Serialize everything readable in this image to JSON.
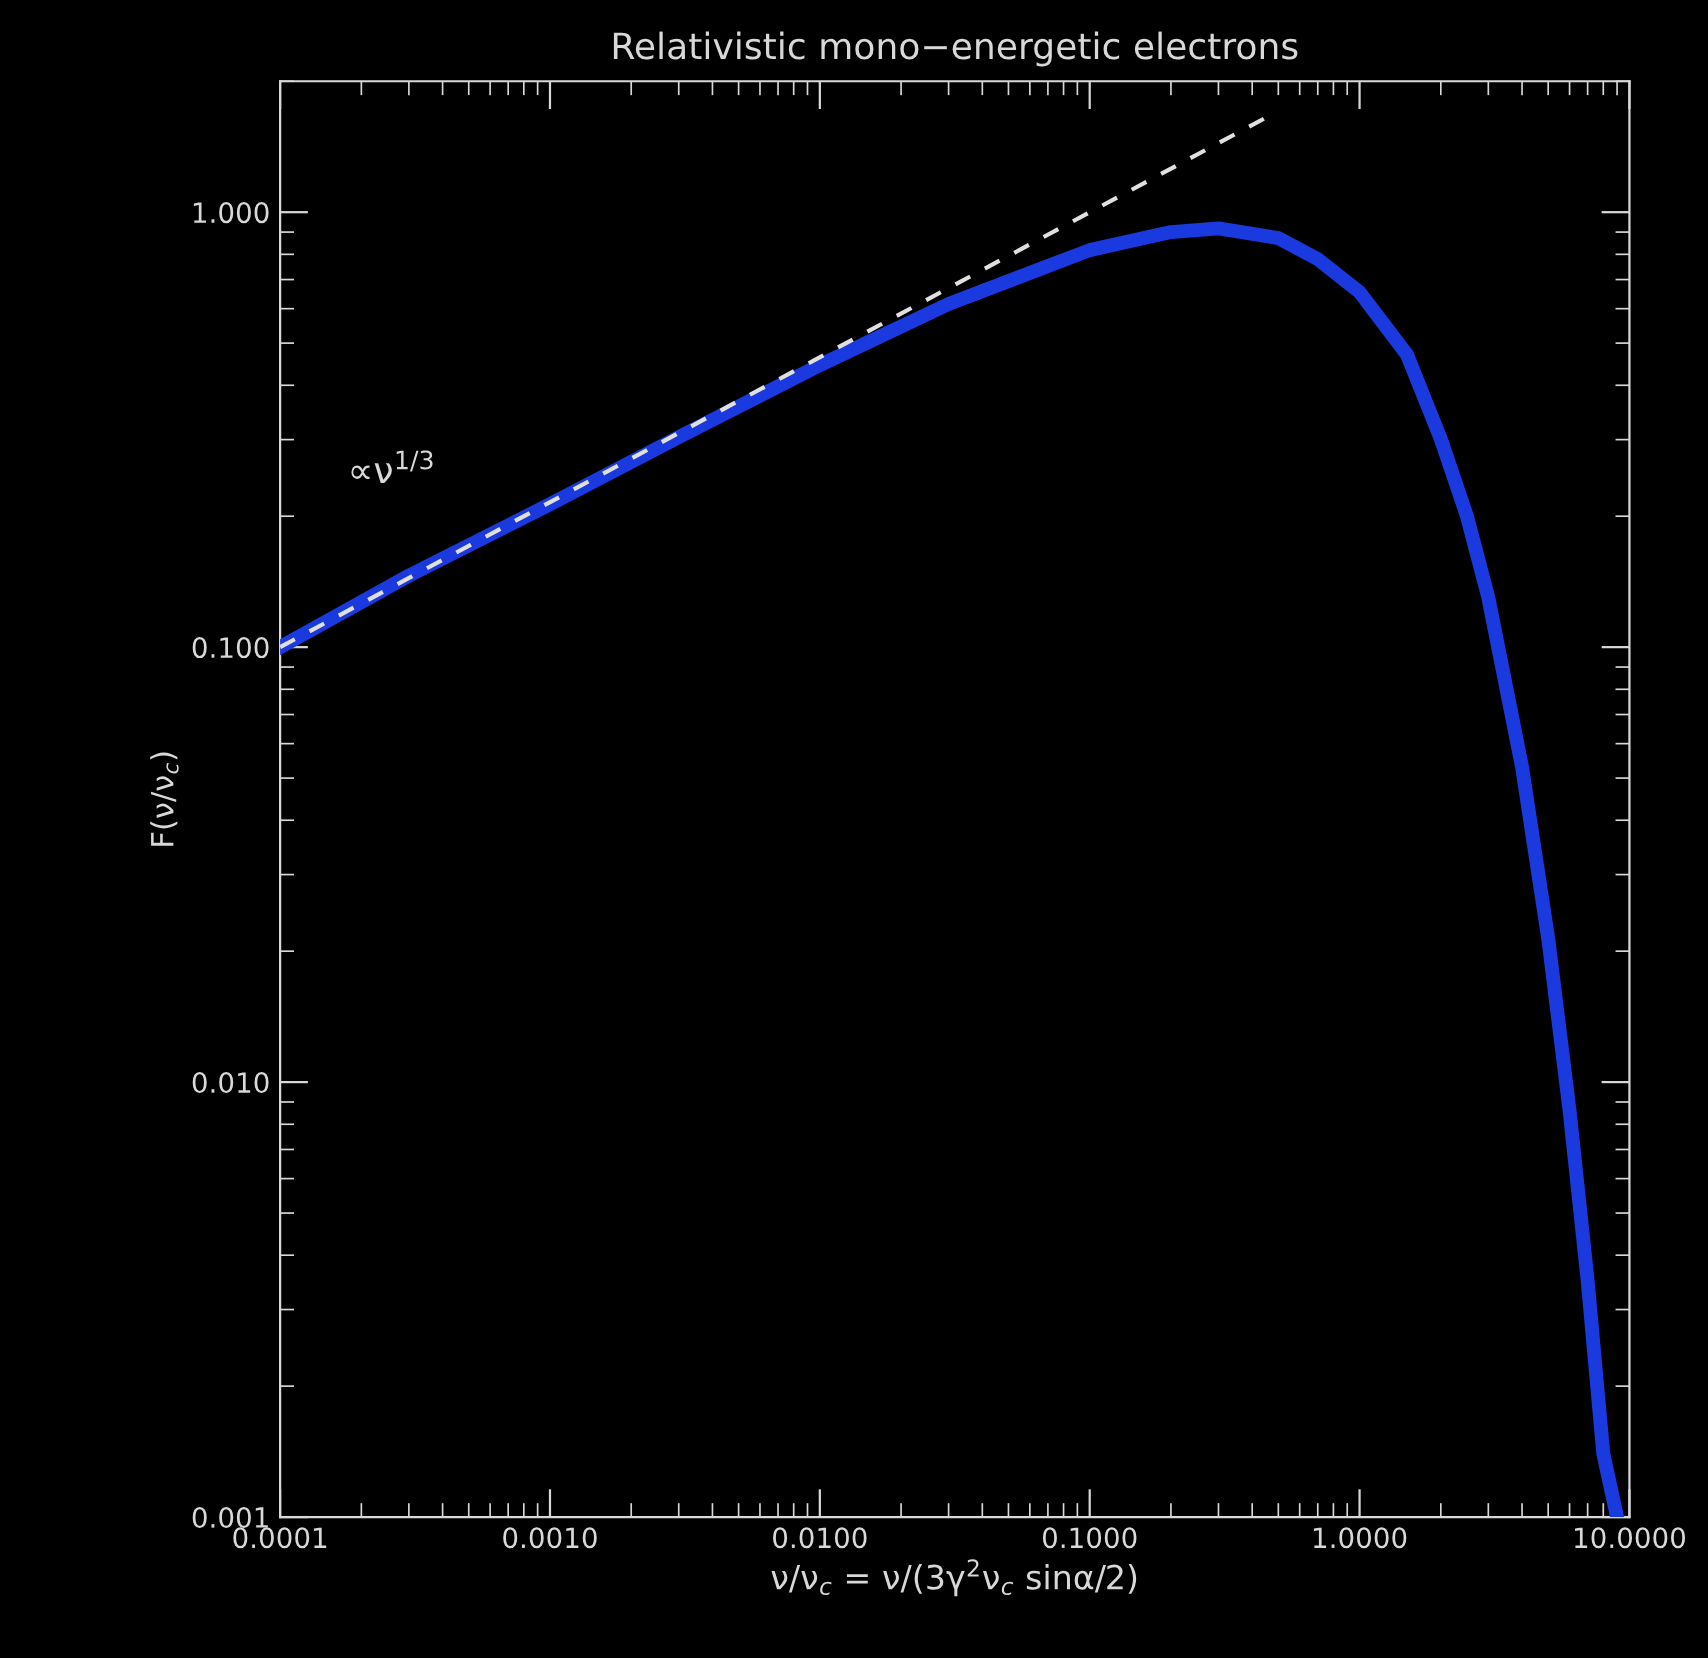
{
  "chart_data": {
    "type": "line",
    "title": "Relativistic mono−energetic electrons",
    "xlabel": "ν/ν$_{c}$ = ν/(3γ$^{2}$ν$_{c}$ sinα/2)",
    "ylabel": "F(ν/ν$_{c}$)",
    "log": "xy",
    "xlim": [
      0.0001,
      10
    ],
    "ylim": [
      0.001,
      2.0
    ],
    "xticks": [
      {
        "value": 0.0001,
        "label": "0.0001"
      },
      {
        "value": 0.001,
        "label": "0.0010"
      },
      {
        "value": 0.01,
        "label": "0.0100"
      },
      {
        "value": 0.1,
        "label": "0.1000"
      },
      {
        "value": 1,
        "label": "1.0000"
      },
      {
        "value": 10,
        "label": "10.0000"
      }
    ],
    "yticks": [
      {
        "value": 0.001,
        "label": "0.001"
      },
      {
        "value": 0.01,
        "label": "0.010"
      },
      {
        "value": 0.1,
        "label": "0.100"
      },
      {
        "value": 1,
        "label": "1.000"
      }
    ],
    "grid": false,
    "legend": false,
    "series": [
      {
        "color": "#1a3ae0",
        "x": [
          0.0001,
          0.0003,
          0.001,
          0.003,
          0.01,
          0.03,
          0.1,
          0.2,
          0.3,
          0.5,
          0.7,
          1.0,
          1.5,
          2.0,
          2.5,
          3.0,
          4.0,
          5.0,
          6.0,
          7.0,
          8.0,
          9.0
        ],
        "values": [
          0.1,
          0.146,
          0.213,
          0.304,
          0.445,
          0.615,
          0.818,
          0.9,
          0.918,
          0.872,
          0.78,
          0.655,
          0.47,
          0.301,
          0.2,
          0.13,
          0.053,
          0.0214,
          0.0086,
          0.0035,
          0.0014,
          0.001
        ]
      },
      {
        "color": "#e0e0e0",
        "line_style": "dashed",
        "x": [
          0.0001,
          0.45
        ],
        "values": [
          0.1,
          1.65
        ]
      }
    ],
    "annotations": [
      "∝ν$^{1/3}$"
    ]
  }
}
